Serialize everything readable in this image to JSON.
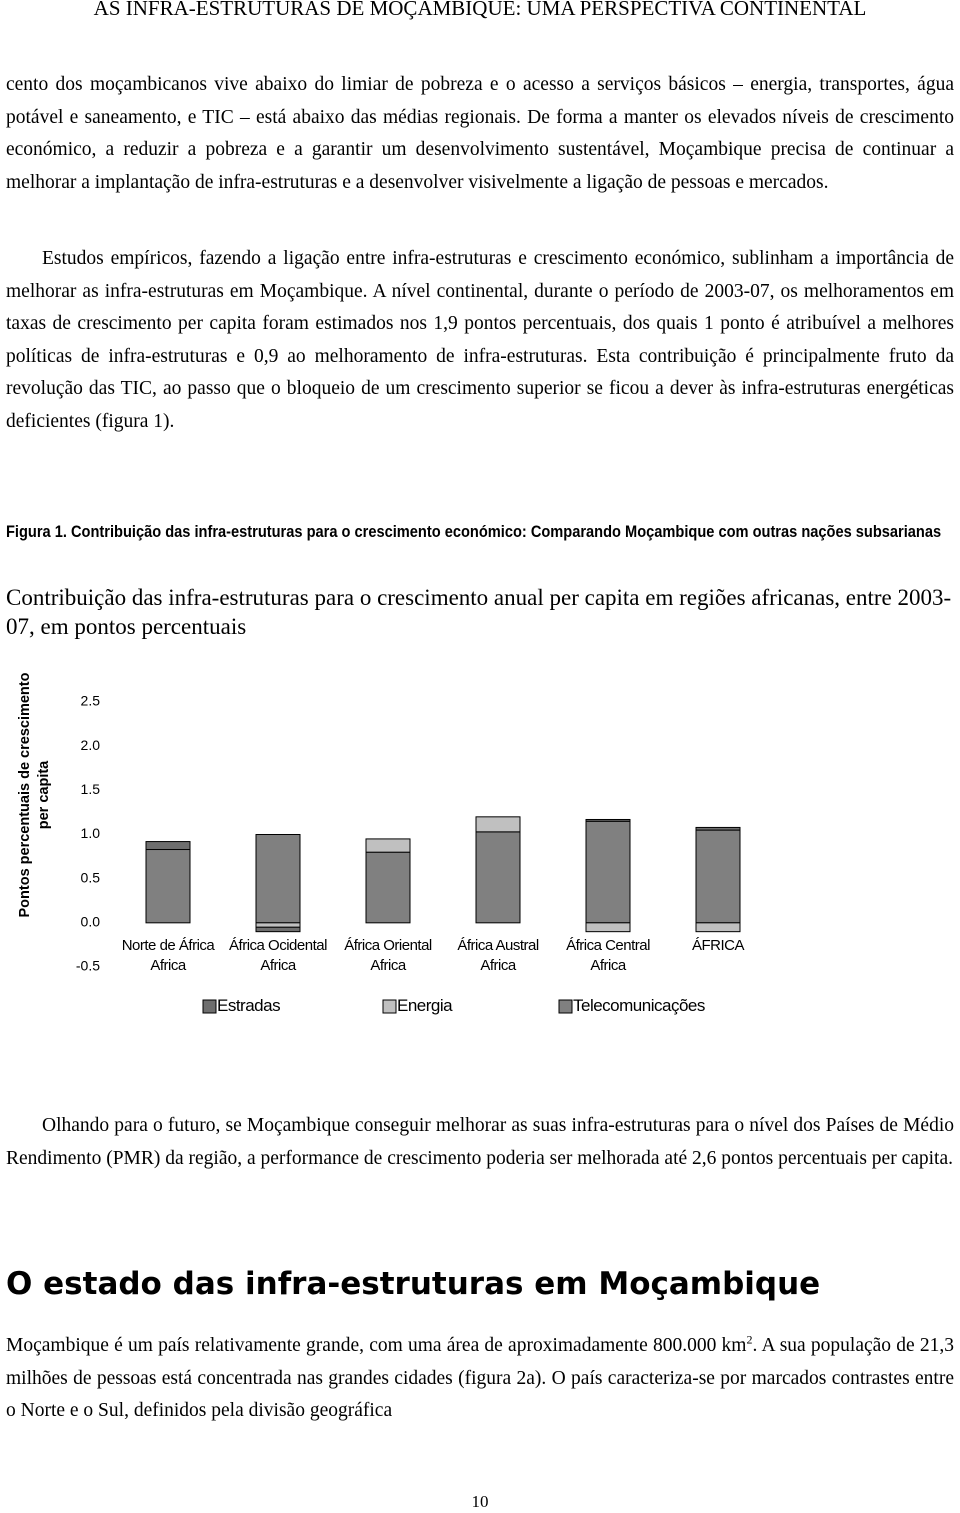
{
  "header": {
    "title": "AS INFRA-ESTRUTURAS DE MOÇAMBIQUE: UMA PERSPECTIVA CONTINENTAL"
  },
  "paragraphs": [
    "cento dos moçambicanos vive abaixo do limiar de pobreza e o acesso a serviços básicos – energia, transportes, água potável e saneamento, e TIC – está abaixo das médias regionais. De forma a manter os elevados níveis de crescimento económico, a reduzir a pobreza e a garantir um desenvolvimento sustentável, Moçambique precisa de continuar a melhorar a implantação de infra-estruturas e a desenvolver visivelmente a ligação de pessoas e mercados.",
    "Estudos empíricos, fazendo a ligação entre infra-estruturas e crescimento económico, sublinham a importância de melhorar as infra-estruturas em Moçambique. A nível continental, durante o período de 2003-07, os melhoramentos em taxas de crescimento per capita foram estimados nos 1,9 pontos percentuais, dos quais 1 ponto é atribuível a melhores políticas de infra-estruturas e 0,9 ao melhoramento de infra-estruturas. Esta contribuição é principalmente fruto da revolução das TIC, ao passo que o bloqueio de um crescimento superior se ficou a dever às infra-estruturas energéticas deficientes (figura 1)."
  ],
  "figure": {
    "caption": "Figura 1. Contribuição das infra-estruturas para o crescimento económico: Comparando Moçambique com outras nações subsarianas"
  },
  "chart_data": {
    "type": "stacked_bar",
    "title": "Contribuição das infra-estruturas para o crescimento anual per capita em regiões africanas, entre 2003-07, em pontos percentuais",
    "y_label": "Pontos percentuais de crescimento per capita",
    "categories": [
      "Norte de África Africa",
      "África Ocidental Africa",
      "África Oriental Africa",
      "África Austral Africa",
      "África Central Africa",
      "ÁFRICA"
    ],
    "series": [
      {
        "name": "Estradas",
        "color": "#6e6e6e",
        "values": [
          0.09,
          -0.05,
          0.0,
          0.0,
          0.02,
          0.03
        ]
      },
      {
        "name": "Energia",
        "color": "#c0c0c0",
        "values": [
          0.0,
          -0.05,
          0.15,
          0.17,
          -0.1,
          -0.1
        ]
      },
      {
        "name": "Telecomunicações",
        "color": "#808080",
        "values": [
          0.83,
          1.0,
          0.8,
          1.03,
          1.15,
          1.05
        ]
      }
    ],
    "ylim": [
      -0.5,
      2.5
    ],
    "yticks": [
      -0.5,
      {
        "value": 0,
        "label": "0.0"
      },
      0.5,
      {
        "value": 1,
        "label": "1.0"
      },
      1.5,
      {
        "value": 2,
        "label": "2.0"
      },
      2.5
    ]
  },
  "closing": {
    "paragraph": "Olhando para o futuro, se Moçambique conseguir melhorar as suas infra-estruturas para o nível dos Países de Médio Rendimento (PMR) da região, a performance de crescimento poderia ser melhorada até 2,6 pontos percentuais per capita.",
    "heading": "O estado das infra-estruturas em Moçambique",
    "last_paragraph": {
      "before": "Moçambique é um país relativamente grande, com uma área de aproximadamente 800.000 km",
      "sup": "2",
      "after": ". A sua população de 21,3 milhões de pessoas está concentrada nas grandes cidades (figura 2a). O país caracteriza-se por marcados contrastes entre o Norte e o Sul, definidos pela divisão geográfica"
    }
  },
  "page_number": "10"
}
